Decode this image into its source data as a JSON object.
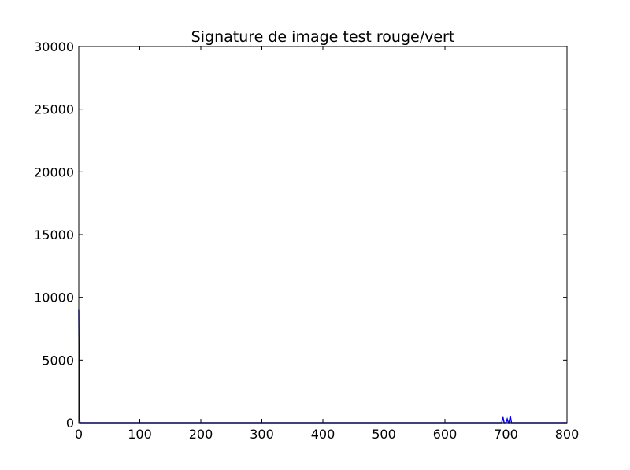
{
  "chart_data": {
    "type": "line",
    "title": "Signature de image test rouge/vert",
    "xlabel": "",
    "ylabel": "",
    "xlim": [
      0,
      800
    ],
    "ylim": [
      0,
      30000
    ],
    "xticks": [
      0,
      100,
      200,
      300,
      400,
      500,
      600,
      700,
      800
    ],
    "yticks": [
      0,
      5000,
      10000,
      15000,
      20000,
      25000,
      30000
    ],
    "xtick_labels": [
      "0",
      "100",
      "200",
      "300",
      "400",
      "500",
      "600",
      "700",
      "800"
    ],
    "ytick_labels": [
      "0",
      "5000",
      "10000",
      "15000",
      "20000",
      "25000",
      "30000"
    ],
    "grid": false,
    "series": [
      {
        "color": "#0000ff",
        "points": [
          [
            0,
            9000
          ],
          [
            1,
            500
          ],
          [
            2,
            0
          ],
          [
            100,
            0
          ],
          [
            200,
            0
          ],
          [
            300,
            0
          ],
          [
            400,
            0
          ],
          [
            500,
            0
          ],
          [
            600,
            0
          ],
          [
            693,
            0
          ],
          [
            695,
            450
          ],
          [
            697,
            0
          ],
          [
            700,
            0
          ],
          [
            702,
            300
          ],
          [
            704,
            0
          ],
          [
            705,
            0
          ],
          [
            707,
            550
          ],
          [
            709,
            0
          ],
          [
            800,
            0
          ]
        ]
      }
    ]
  }
}
